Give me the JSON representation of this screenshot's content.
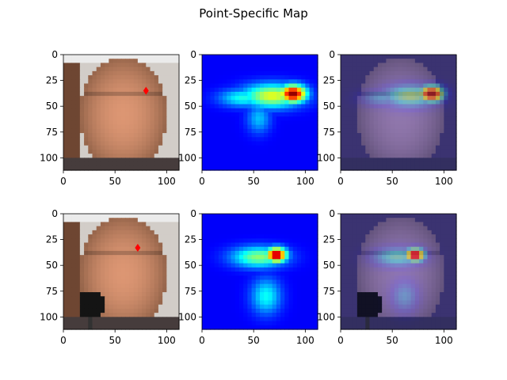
{
  "title": "Point-Specific Map",
  "chart_data": {
    "type": "heatmap",
    "title": "Point-Specific Map",
    "xlim": [
      0,
      112
    ],
    "ylim": [
      112,
      0
    ],
    "xticks": [
      0,
      50,
      100
    ],
    "yticks": [
      0,
      25,
      50,
      75,
      100
    ],
    "grid": false,
    "rows": [
      {
        "name": "row-1",
        "marker": {
          "x": 80,
          "y": 35,
          "color": "#ff0000",
          "shape": "diamond"
        },
        "panels": [
          {
            "kind": "face-photo",
            "palette": "warm-skin"
          },
          {
            "kind": "heatmap",
            "colormap": "jet",
            "peaks": [
              {
                "x": 88,
                "y": 38,
                "sx": 9,
                "sy": 6,
                "v": 1.0
              },
              {
                "x": 68,
                "y": 40,
                "sx": 20,
                "sy": 8,
                "v": 0.55
              },
              {
                "x": 40,
                "y": 42,
                "sx": 16,
                "sy": 6,
                "v": 0.32
              },
              {
                "x": 55,
                "y": 62,
                "sx": 8,
                "sy": 10,
                "v": 0.22
              }
            ]
          },
          {
            "kind": "overlay",
            "palette": "cool-skin",
            "peaks": [
              {
                "x": 88,
                "y": 38,
                "sx": 9,
                "sy": 6,
                "v": 1.0
              },
              {
                "x": 68,
                "y": 40,
                "sx": 20,
                "sy": 8,
                "v": 0.55
              },
              {
                "x": 40,
                "y": 42,
                "sx": 16,
                "sy": 6,
                "v": 0.32
              }
            ]
          }
        ]
      },
      {
        "name": "row-2",
        "marker": {
          "x": 72,
          "y": 33,
          "color": "#ff0000",
          "shape": "diamond"
        },
        "panels": [
          {
            "kind": "face-photo",
            "palette": "warm-skin",
            "microphone": true
          },
          {
            "kind": "heatmap",
            "colormap": "jet",
            "peaks": [
              {
                "x": 72,
                "y": 40,
                "sx": 7,
                "sy": 5,
                "v": 1.0
              },
              {
                "x": 55,
                "y": 42,
                "sx": 18,
                "sy": 7,
                "v": 0.45
              },
              {
                "x": 62,
                "y": 80,
                "sx": 10,
                "sy": 12,
                "v": 0.3
              }
            ]
          },
          {
            "kind": "overlay",
            "palette": "cool-skin",
            "microphone": true,
            "peaks": [
              {
                "x": 72,
                "y": 40,
                "sx": 7,
                "sy": 5,
                "v": 1.0
              },
              {
                "x": 55,
                "y": 42,
                "sx": 18,
                "sy": 7,
                "v": 0.45
              },
              {
                "x": 62,
                "y": 80,
                "sx": 10,
                "sy": 12,
                "v": 0.3
              }
            ]
          }
        ]
      }
    ]
  }
}
